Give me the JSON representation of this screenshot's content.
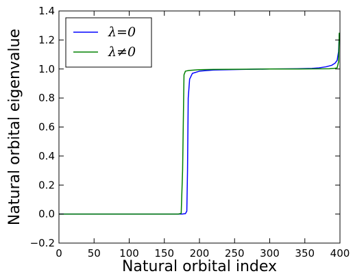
{
  "chart_data": {
    "type": "line",
    "title": "",
    "xlabel": "Natural orbital index",
    "ylabel": "Natural orbital eigenvalue",
    "xlim": [
      0,
      400
    ],
    "ylim": [
      -0.2,
      1.4
    ],
    "xticks": [
      0,
      50,
      100,
      150,
      200,
      250,
      300,
      350,
      400
    ],
    "yticks": [
      -0.2,
      0.0,
      0.2,
      0.4,
      0.6,
      0.8,
      1.0,
      1.2,
      1.4
    ],
    "xtick_labels": [
      "0",
      "50",
      "100",
      "150",
      "200",
      "250",
      "300",
      "350",
      "400"
    ],
    "ytick_labels": [
      "−0.2",
      "0.0",
      "0.2",
      "0.4",
      "0.6",
      "0.8",
      "1.0",
      "1.2",
      "1.4"
    ],
    "grid": false,
    "legend_position": "top-left",
    "series": [
      {
        "name": "λ=0",
        "color": "#0000ff",
        "x": [
          0,
          50,
          100,
          150,
          175,
          180,
          182,
          183,
          184,
          186,
          190,
          200,
          220,
          260,
          300,
          340,
          360,
          370,
          380,
          388,
          393,
          396,
          398,
          399
        ],
        "y": [
          0.0,
          0.0,
          0.0,
          0.0,
          0.0,
          0.003,
          0.02,
          0.3,
          0.8,
          0.93,
          0.97,
          0.985,
          0.993,
          0.997,
          1.0,
          1.002,
          1.004,
          1.008,
          1.015,
          1.025,
          1.04,
          1.06,
          1.12,
          1.24
        ]
      },
      {
        "name": "λ≠0",
        "color": "#008000",
        "x": [
          0,
          50,
          100,
          150,
          170,
          174,
          176,
          178,
          180,
          185,
          200,
          220,
          260,
          300,
          340,
          370,
          385,
          392,
          396,
          398,
          399
        ],
        "y": [
          0.0,
          0.0,
          0.0,
          0.0,
          0.0,
          0.005,
          0.3,
          0.96,
          0.985,
          0.99,
          0.995,
          0.997,
          0.998,
          1.0,
          1.0,
          1.001,
          1.002,
          1.004,
          1.008,
          1.05,
          1.25
        ]
      }
    ]
  }
}
